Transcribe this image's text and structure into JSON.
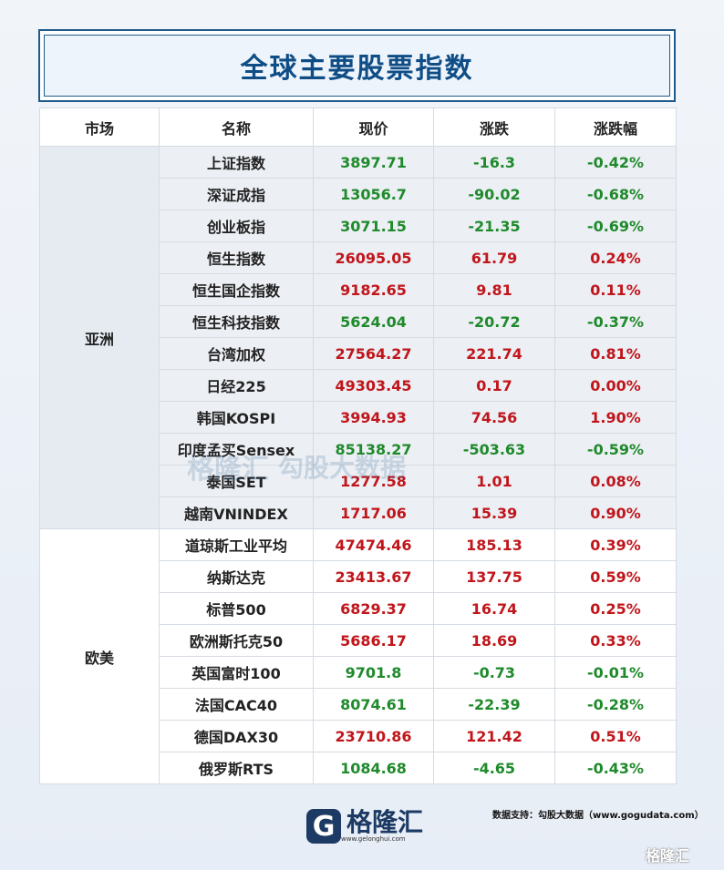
{
  "title": "全球主要股票指数",
  "headers": [
    "市场",
    "名称",
    "现价",
    "涨跌",
    "涨跌幅"
  ],
  "markets": [
    {
      "name": "亚洲",
      "cls": "asia",
      "rows": [
        {
          "name": "上证指数",
          "price": "3897.71",
          "change": "-16.3",
          "pct": "-0.42%",
          "dir": "down"
        },
        {
          "name": "深证成指",
          "price": "13056.7",
          "change": "-90.02",
          "pct": "-0.68%",
          "dir": "down"
        },
        {
          "name": "创业板指",
          "price": "3071.15",
          "change": "-21.35",
          "pct": "-0.69%",
          "dir": "down"
        },
        {
          "name": "恒生指数",
          "price": "26095.05",
          "change": "61.79",
          "pct": "0.24%",
          "dir": "up"
        },
        {
          "name": "恒生国企指数",
          "price": "9182.65",
          "change": "9.81",
          "pct": "0.11%",
          "dir": "up"
        },
        {
          "name": "恒生科技指数",
          "price": "5624.04",
          "change": "-20.72",
          "pct": "-0.37%",
          "dir": "down"
        },
        {
          "name": "台湾加权",
          "price": "27564.27",
          "change": "221.74",
          "pct": "0.81%",
          "dir": "up"
        },
        {
          "name": "日经225",
          "price": "49303.45",
          "change": "0.17",
          "pct": "0.00%",
          "dir": "up"
        },
        {
          "name": "韩国KOSPI",
          "price": "3994.93",
          "change": "74.56",
          "pct": "1.90%",
          "dir": "up"
        },
        {
          "name": "印度孟买Sensex",
          "price": "85138.27",
          "change": "-503.63",
          "pct": "-0.59%",
          "dir": "down"
        },
        {
          "name": "泰国SET",
          "price": "1277.58",
          "change": "1.01",
          "pct": "0.08%",
          "dir": "up"
        },
        {
          "name": "越南VNINDEX",
          "price": "1717.06",
          "change": "15.39",
          "pct": "0.90%",
          "dir": "up"
        }
      ]
    },
    {
      "name": "欧美",
      "cls": "eu",
      "rows": [
        {
          "name": "道琼斯工业平均",
          "price": "47474.46",
          "change": "185.13",
          "pct": "0.39%",
          "dir": "up"
        },
        {
          "name": "纳斯达克",
          "price": "23413.67",
          "change": "137.75",
          "pct": "0.59%",
          "dir": "up"
        },
        {
          "name": "标普500",
          "price": "6829.37",
          "change": "16.74",
          "pct": "0.25%",
          "dir": "up"
        },
        {
          "name": "欧洲斯托克50",
          "price": "5686.17",
          "change": "18.69",
          "pct": "0.33%",
          "dir": "up"
        },
        {
          "name": "英国富时100",
          "price": "9701.8",
          "change": "-0.73",
          "pct": "-0.01%",
          "dir": "down"
        },
        {
          "name": "法国CAC40",
          "price": "8074.61",
          "change": "-22.39",
          "pct": "-0.28%",
          "dir": "down"
        },
        {
          "name": "德国DAX30",
          "price": "23710.86",
          "change": "121.42",
          "pct": "0.51%",
          "dir": "up"
        },
        {
          "name": "俄罗斯RTS",
          "price": "1084.68",
          "change": "-4.65",
          "pct": "-0.43%",
          "dir": "down"
        }
      ]
    }
  ],
  "watermark": {
    "logo": "格隆汇",
    "text": "勾股大数据",
    "url": "www.gogudata.com"
  },
  "footer": {
    "logo_mark": "G",
    "logo_text": "格隆汇",
    "logo_sub": "www.gelonghui.com",
    "source": "数据支持：勾股大数据（www.gogudata.com）",
    "corner": "格隆汇"
  },
  "colors": {
    "up": "#c0161b",
    "down": "#1f8a2b",
    "brand": "#0f4d86"
  }
}
